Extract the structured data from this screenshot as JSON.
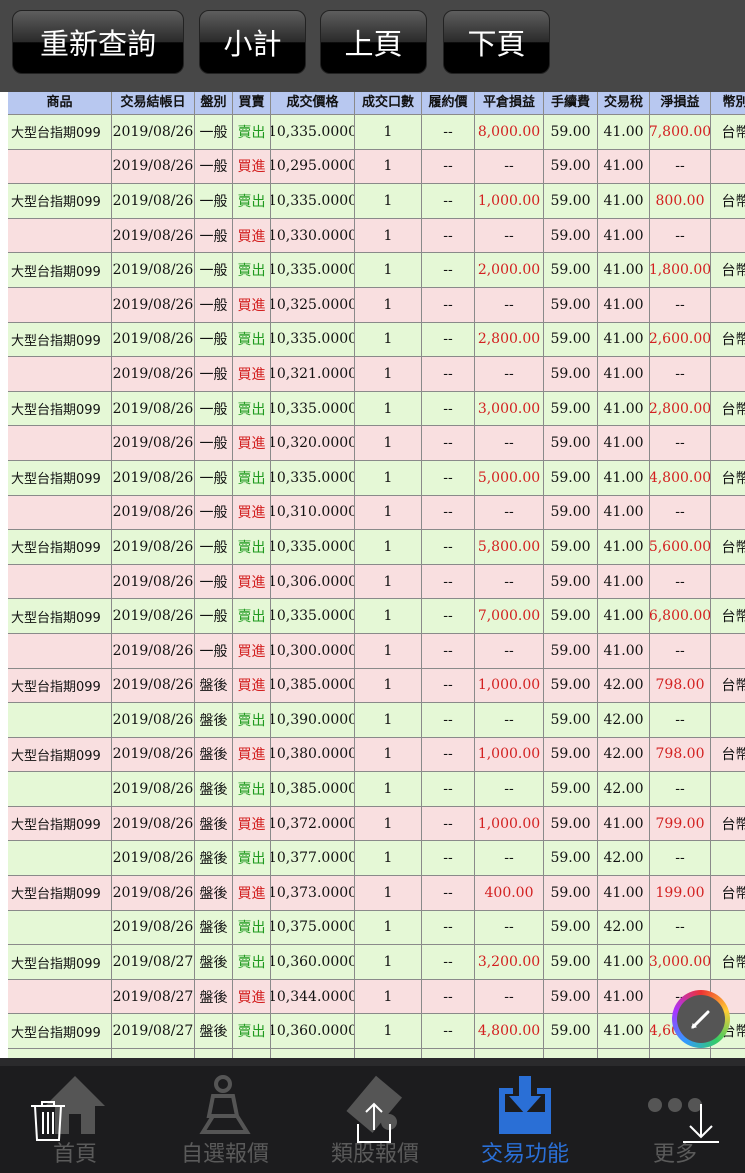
{
  "toolbar": {
    "requery": "重新查詢",
    "subtotal": "小計",
    "prev_page": "上頁",
    "next_page": "下頁"
  },
  "table": {
    "headers": [
      "商品",
      "交易結帳日",
      "盤別",
      "買賣",
      "成交價格",
      "成交口數",
      "履約價",
      "平倉損益",
      "手續費",
      "交易稅",
      "淨損益",
      "幣別"
    ],
    "rows": [
      [
        "大型台指期099",
        "2019/08/26",
        "一般",
        "賣出",
        "10,335.0000",
        "1",
        "--",
        "8,000.00",
        "59.00",
        "41.00",
        "7,800.00",
        "台幣"
      ],
      [
        "",
        "2019/08/26",
        "一般",
        "買進",
        "10,295.0000",
        "1",
        "--",
        "--",
        "59.00",
        "41.00",
        "--",
        ""
      ],
      [
        "大型台指期099",
        "2019/08/26",
        "一般",
        "賣出",
        "10,335.0000",
        "1",
        "--",
        "1,000.00",
        "59.00",
        "41.00",
        "800.00",
        "台幣"
      ],
      [
        "",
        "2019/08/26",
        "一般",
        "買進",
        "10,330.0000",
        "1",
        "--",
        "--",
        "59.00",
        "41.00",
        "--",
        ""
      ],
      [
        "大型台指期099",
        "2019/08/26",
        "一般",
        "賣出",
        "10,335.0000",
        "1",
        "--",
        "2,000.00",
        "59.00",
        "41.00",
        "1,800.00",
        "台幣"
      ],
      [
        "",
        "2019/08/26",
        "一般",
        "買進",
        "10,325.0000",
        "1",
        "--",
        "--",
        "59.00",
        "41.00",
        "--",
        ""
      ],
      [
        "大型台指期099",
        "2019/08/26",
        "一般",
        "賣出",
        "10,335.0000",
        "1",
        "--",
        "2,800.00",
        "59.00",
        "41.00",
        "2,600.00",
        "台幣"
      ],
      [
        "",
        "2019/08/26",
        "一般",
        "買進",
        "10,321.0000",
        "1",
        "--",
        "--",
        "59.00",
        "41.00",
        "--",
        ""
      ],
      [
        "大型台指期099",
        "2019/08/26",
        "一般",
        "賣出",
        "10,335.0000",
        "1",
        "--",
        "3,000.00",
        "59.00",
        "41.00",
        "2,800.00",
        "台幣"
      ],
      [
        "",
        "2019/08/26",
        "一般",
        "買進",
        "10,320.0000",
        "1",
        "--",
        "--",
        "59.00",
        "41.00",
        "--",
        ""
      ],
      [
        "大型台指期099",
        "2019/08/26",
        "一般",
        "賣出",
        "10,335.0000",
        "1",
        "--",
        "5,000.00",
        "59.00",
        "41.00",
        "4,800.00",
        "台幣"
      ],
      [
        "",
        "2019/08/26",
        "一般",
        "買進",
        "10,310.0000",
        "1",
        "--",
        "--",
        "59.00",
        "41.00",
        "--",
        ""
      ],
      [
        "大型台指期099",
        "2019/08/26",
        "一般",
        "賣出",
        "10,335.0000",
        "1",
        "--",
        "5,800.00",
        "59.00",
        "41.00",
        "5,600.00",
        "台幣"
      ],
      [
        "",
        "2019/08/26",
        "一般",
        "買進",
        "10,306.0000",
        "1",
        "--",
        "--",
        "59.00",
        "41.00",
        "--",
        ""
      ],
      [
        "大型台指期099",
        "2019/08/26",
        "一般",
        "賣出",
        "10,335.0000",
        "1",
        "--",
        "7,000.00",
        "59.00",
        "41.00",
        "6,800.00",
        "台幣"
      ],
      [
        "",
        "2019/08/26",
        "一般",
        "買進",
        "10,300.0000",
        "1",
        "--",
        "--",
        "59.00",
        "41.00",
        "--",
        ""
      ],
      [
        "大型台指期099",
        "2019/08/26",
        "盤後",
        "買進",
        "10,385.0000",
        "1",
        "--",
        "1,000.00",
        "59.00",
        "42.00",
        "798.00",
        "台幣"
      ],
      [
        "",
        "2019/08/26",
        "盤後",
        "賣出",
        "10,390.0000",
        "1",
        "--",
        "--",
        "59.00",
        "42.00",
        "--",
        ""
      ],
      [
        "大型台指期099",
        "2019/08/26",
        "盤後",
        "買進",
        "10,380.0000",
        "1",
        "--",
        "1,000.00",
        "59.00",
        "42.00",
        "798.00",
        "台幣"
      ],
      [
        "",
        "2019/08/26",
        "盤後",
        "賣出",
        "10,385.0000",
        "1",
        "--",
        "--",
        "59.00",
        "42.00",
        "--",
        ""
      ],
      [
        "大型台指期099",
        "2019/08/26",
        "盤後",
        "買進",
        "10,372.0000",
        "1",
        "--",
        "1,000.00",
        "59.00",
        "41.00",
        "799.00",
        "台幣"
      ],
      [
        "",
        "2019/08/26",
        "盤後",
        "賣出",
        "10,377.0000",
        "1",
        "--",
        "--",
        "59.00",
        "42.00",
        "--",
        ""
      ],
      [
        "大型台指期099",
        "2019/08/26",
        "盤後",
        "買進",
        "10,373.0000",
        "1",
        "--",
        "400.00",
        "59.00",
        "41.00",
        "199.00",
        "台幣"
      ],
      [
        "",
        "2019/08/26",
        "盤後",
        "賣出",
        "10,375.0000",
        "1",
        "--",
        "--",
        "59.00",
        "42.00",
        "--",
        ""
      ],
      [
        "大型台指期099",
        "2019/08/27",
        "盤後",
        "賣出",
        "10,360.0000",
        "1",
        "--",
        "3,200.00",
        "59.00",
        "41.00",
        "3,000.00",
        "台幣"
      ],
      [
        "",
        "2019/08/27",
        "盤後",
        "買進",
        "10,344.0000",
        "1",
        "--",
        "--",
        "59.00",
        "41.00",
        "--",
        ""
      ],
      [
        "大型台指期099",
        "2019/08/27",
        "盤後",
        "賣出",
        "10,360.0000",
        "1",
        "--",
        "4,800.00",
        "59.00",
        "41.00",
        "4,600.00",
        "台幣"
      ],
      [
        "",
        "",
        "",
        "",
        "",
        "",
        "",
        "",
        "",
        "",
        "",
        ""
      ]
    ]
  },
  "tabbar": {
    "items": [
      {
        "label": "首頁",
        "icon": "home-icon"
      },
      {
        "label": "自選報價",
        "icon": "person-icon"
      },
      {
        "label": "類股報價",
        "icon": "film-icon"
      },
      {
        "label": "交易功能",
        "icon": "inbox-download-icon",
        "active": true
      },
      {
        "label": "更多",
        "icon": "more-icon"
      }
    ]
  },
  "colors": {
    "sell_row": "#e5f8d6",
    "buy_row": "#f9dfe0",
    "header": "#b8c8f0",
    "profit": "#d32020",
    "sell_text": "#1f9a1f",
    "buy_text": "#d32020",
    "active_tab": "#2a6fd6"
  }
}
